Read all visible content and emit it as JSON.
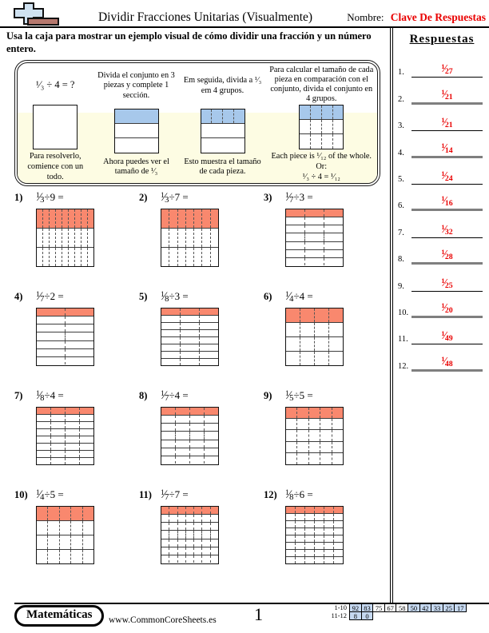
{
  "header": {
    "title": "Dividir Fracciones Unitarias (Visualmente)",
    "name_label": "Nombre:",
    "name_value": "Clave De Respuestas"
  },
  "instructions": "Usa la caja para mostrar un ejemplo visual de cómo dividir una fracción y un número entero.",
  "example": {
    "steps": [
      {
        "top": "¹⁄₃ ÷ 4 = ?",
        "top_is_equation": true,
        "bottom": "Para resolverlo, comience con un todo.",
        "grid": {
          "rows": 1,
          "cols": 1,
          "shaded": false,
          "dotted": "none"
        }
      },
      {
        "top": "Divida el conjunto en 3 piezas y complete 1 sección.",
        "bottom": "Ahora puedes ver el tamaño de ¹⁄₃",
        "grid": {
          "rows": 3,
          "cols": 1,
          "shaded": true,
          "dotted": "none"
        }
      },
      {
        "top": "Em seguida, divida a ¹⁄₃ em 4 grupos.",
        "bottom": "Esto muestra el tamaño de cada pieza.",
        "grid": {
          "rows": 3,
          "cols": 4,
          "shaded": true,
          "dotted": "top"
        }
      },
      {
        "top": "Para calcular el tamaño de cada pieza en comparación con el conjunto, divida el conjunto en 4 grupos.",
        "bottom": "Each piece is ¹⁄₁₂ of the whole.\nOr:\n¹⁄₃ ÷ 4 = ¹⁄₁₂",
        "grid": {
          "rows": 3,
          "cols": 4,
          "shaded": true,
          "dotted": "all"
        }
      }
    ]
  },
  "problems": [
    {
      "label": "1)",
      "num": "1",
      "den": "3",
      "suffix": "÷9 =",
      "rows": 3,
      "cols": 9
    },
    {
      "label": "2)",
      "num": "1",
      "den": "3",
      "suffix": "÷7 =",
      "rows": 3,
      "cols": 7
    },
    {
      "label": "3)",
      "num": "1",
      "den": "7",
      "suffix": "÷3 =",
      "rows": 7,
      "cols": 3
    },
    {
      "label": "4)",
      "num": "1",
      "den": "7",
      "suffix": "÷2 =",
      "rows": 7,
      "cols": 2
    },
    {
      "label": "5)",
      "num": "1",
      "den": "8",
      "suffix": "÷3 =",
      "rows": 8,
      "cols": 3
    },
    {
      "label": "6)",
      "num": "1",
      "den": "4",
      "suffix": "÷4 =",
      "rows": 4,
      "cols": 4
    },
    {
      "label": "7)",
      "num": "1",
      "den": "8",
      "suffix": "÷4 =",
      "rows": 8,
      "cols": 4
    },
    {
      "label": "8)",
      "num": "1",
      "den": "7",
      "suffix": "÷4 =",
      "rows": 7,
      "cols": 4
    },
    {
      "label": "9)",
      "num": "1",
      "den": "5",
      "suffix": "÷5 =",
      "rows": 5,
      "cols": 5
    },
    {
      "label": "10)",
      "num": "1",
      "den": "4",
      "suffix": "÷5 =",
      "rows": 4,
      "cols": 5
    },
    {
      "label": "11)",
      "num": "1",
      "den": "7",
      "suffix": "÷7 =",
      "rows": 7,
      "cols": 7
    },
    {
      "label": "12)",
      "num": "1",
      "den": "8",
      "suffix": "÷6 =",
      "rows": 8,
      "cols": 6
    }
  ],
  "answers": {
    "heading": "Respuestas",
    "items": [
      {
        "label": "1.",
        "num": "1",
        "den": "27"
      },
      {
        "label": "2.",
        "num": "1",
        "den": "21"
      },
      {
        "label": "3.",
        "num": "1",
        "den": "21"
      },
      {
        "label": "4.",
        "num": "1",
        "den": "14"
      },
      {
        "label": "5.",
        "num": "1",
        "den": "24"
      },
      {
        "label": "6.",
        "num": "1",
        "den": "16"
      },
      {
        "label": "7.",
        "num": "1",
        "den": "32"
      },
      {
        "label": "8.",
        "num": "1",
        "den": "28"
      },
      {
        "label": "9.",
        "num": "1",
        "den": "25"
      },
      {
        "label": "10.",
        "num": "1",
        "den": "20"
      },
      {
        "label": "11.",
        "num": "1",
        "den": "49"
      },
      {
        "label": "12.",
        "num": "1",
        "den": "48"
      }
    ]
  },
  "footer": {
    "subject_badge": "Matemáticas",
    "website": "www.CommonCoreSheets.es",
    "page_number": "1",
    "score_table": {
      "rows": [
        {
          "label": "1-10",
          "cells": [
            {
              "v": "92",
              "hl": true
            },
            {
              "v": "83",
              "hl": true
            },
            {
              "v": "75",
              "hl": false
            },
            {
              "v": "67",
              "hl": false
            },
            {
              "v": "58",
              "hl": false
            },
            {
              "v": "50",
              "hl": true
            },
            {
              "v": "42",
              "hl": true
            },
            {
              "v": "33",
              "hl": true
            },
            {
              "v": "25",
              "hl": true
            },
            {
              "v": "17",
              "hl": true
            }
          ]
        },
        {
          "label": "11-12",
          "cells": [
            {
              "v": "8",
              "hl": true
            },
            {
              "v": "0",
              "hl": true
            }
          ]
        }
      ]
    }
  },
  "colors": {
    "answer_red": "#e90000",
    "shade_red": "#f9886e",
    "shade_blue": "#a7c8eb",
    "score_highlight": "#c6d9f1",
    "band_yellow": "#fdfce3"
  }
}
